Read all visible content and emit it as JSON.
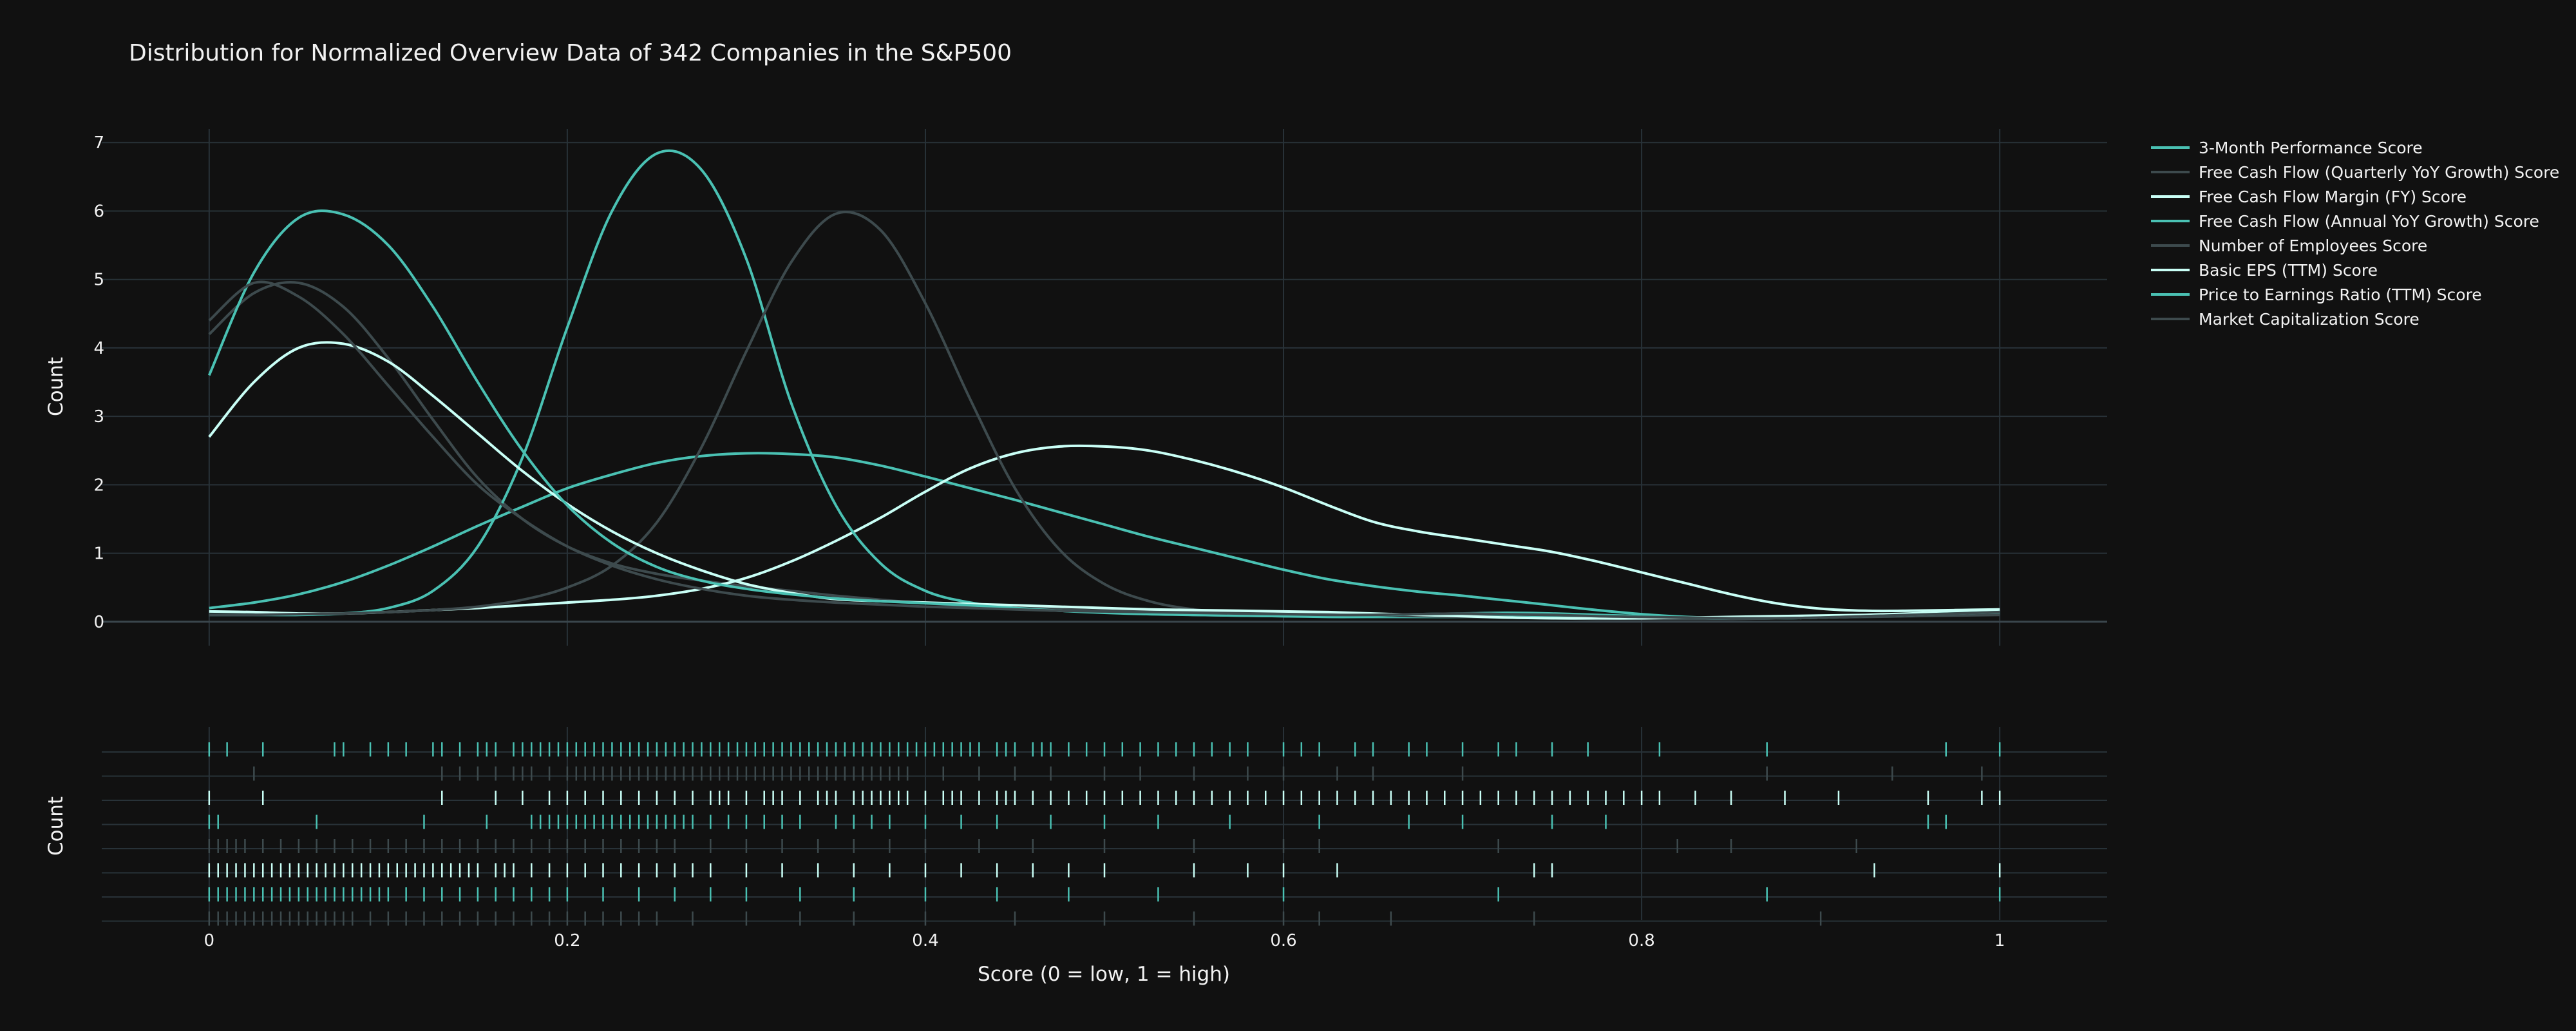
{
  "chart_data": {
    "type": "area",
    "title": "Distribution for Normalized Overview Data of 342 Companies in the S&P500",
    "xlabel": "Score (0 = low, 1 = high)",
    "ylabel": "Count",
    "rug_ylabel": "Count",
    "xlim": [
      -0.06,
      1.06
    ],
    "ylim": [
      -0.35,
      7.2
    ],
    "x_ticks": [
      0,
      0.2,
      0.4,
      0.6,
      0.8,
      1
    ],
    "x_tick_labels": [
      "0",
      "0.2",
      "0.4",
      "0.6",
      "0.8",
      "1"
    ],
    "y_ticks": [
      0,
      1,
      2,
      3,
      4,
      5,
      6,
      7
    ],
    "y_tick_labels": [
      "0",
      "1",
      "2",
      "3",
      "4",
      "5",
      "6",
      "7"
    ],
    "grid": true,
    "legend_position": "right",
    "x": [
      0,
      0.025,
      0.05,
      0.075,
      0.1,
      0.125,
      0.15,
      0.175,
      0.2,
      0.225,
      0.25,
      0.275,
      0.3,
      0.325,
      0.35,
      0.375,
      0.4,
      0.425,
      0.45,
      0.475,
      0.5,
      0.525,
      0.55,
      0.575,
      0.6,
      0.625,
      0.65,
      0.675,
      0.7,
      0.725,
      0.75,
      0.775,
      0.8,
      0.825,
      0.85,
      0.875,
      0.9,
      0.925,
      0.95,
      0.975,
      1
    ],
    "series": [
      {
        "name": "3-Month Performance Score",
        "color": "#4ac1b3",
        "values": [
          0.2,
          0.28,
          0.4,
          0.58,
          0.82,
          1.1,
          1.4,
          1.68,
          1.95,
          2.15,
          2.32,
          2.42,
          2.46,
          2.45,
          2.4,
          2.28,
          2.12,
          1.95,
          1.78,
          1.6,
          1.42,
          1.24,
          1.08,
          0.92,
          0.76,
          0.62,
          0.52,
          0.44,
          0.38,
          0.31,
          0.24,
          0.17,
          0.11,
          0.07,
          0.05,
          0.05,
          0.06,
          0.08,
          0.1,
          0.12,
          0.14
        ],
        "rug": [
          0,
          0.01,
          0.03,
          0.07,
          0.075,
          0.09,
          0.1,
          0.11,
          0.125,
          0.13,
          0.14,
          0.15,
          0.155,
          0.16,
          0.17,
          0.175,
          0.18,
          0.185,
          0.19,
          0.195,
          0.2,
          0.205,
          0.21,
          0.215,
          0.22,
          0.225,
          0.23,
          0.235,
          0.24,
          0.245,
          0.25,
          0.255,
          0.26,
          0.265,
          0.27,
          0.275,
          0.28,
          0.285,
          0.29,
          0.295,
          0.3,
          0.305,
          0.31,
          0.315,
          0.32,
          0.325,
          0.33,
          0.335,
          0.34,
          0.345,
          0.35,
          0.355,
          0.36,
          0.365,
          0.37,
          0.375,
          0.38,
          0.385,
          0.39,
          0.395,
          0.4,
          0.405,
          0.41,
          0.415,
          0.42,
          0.425,
          0.43,
          0.44,
          0.445,
          0.45,
          0.46,
          0.465,
          0.47,
          0.48,
          0.49,
          0.5,
          0.51,
          0.52,
          0.53,
          0.54,
          0.55,
          0.56,
          0.57,
          0.58,
          0.6,
          0.61,
          0.62,
          0.64,
          0.65,
          0.67,
          0.68,
          0.7,
          0.72,
          0.73,
          0.75,
          0.77,
          0.81,
          0.87,
          0.97,
          1.0
        ]
      },
      {
        "name": "Free Cash Flow (Quarterly YoY Growth) Score",
        "color": "#3d4a4d",
        "values": [
          4.2,
          4.8,
          4.95,
          4.6,
          3.85,
          2.95,
          2.1,
          1.5,
          1.1,
          0.85,
          0.7,
          0.6,
          0.52,
          0.45,
          0.38,
          0.32,
          0.27,
          0.23,
          0.2,
          0.18,
          0.16,
          0.15,
          0.14,
          0.13,
          0.12,
          0.11,
          0.1,
          0.1,
          0.1,
          0.1,
          0.09,
          0.08,
          0.07,
          0.06,
          0.05,
          0.05,
          0.06,
          0.08,
          0.1,
          0.12,
          0.14
        ],
        "rug": [
          0.025,
          0.13,
          0.14,
          0.15,
          0.16,
          0.17,
          0.175,
          0.18,
          0.19,
          0.2,
          0.205,
          0.21,
          0.215,
          0.22,
          0.225,
          0.23,
          0.235,
          0.24,
          0.245,
          0.25,
          0.255,
          0.26,
          0.265,
          0.27,
          0.275,
          0.28,
          0.285,
          0.29,
          0.295,
          0.3,
          0.305,
          0.31,
          0.315,
          0.32,
          0.325,
          0.33,
          0.335,
          0.34,
          0.345,
          0.35,
          0.355,
          0.36,
          0.365,
          0.37,
          0.375,
          0.38,
          0.385,
          0.39,
          0.41,
          0.43,
          0.45,
          0.47,
          0.5,
          0.52,
          0.55,
          0.58,
          0.6,
          0.63,
          0.65,
          0.7,
          0.87,
          0.94,
          0.99
        ]
      },
      {
        "name": "Free Cash Flow Margin (FY) Score",
        "color": "#c9fff6",
        "values": [
          0.15,
          0.14,
          0.12,
          0.12,
          0.14,
          0.17,
          0.2,
          0.24,
          0.28,
          0.32,
          0.38,
          0.48,
          0.64,
          0.88,
          1.18,
          1.52,
          1.9,
          2.24,
          2.46,
          2.56,
          2.56,
          2.5,
          2.36,
          2.18,
          1.96,
          1.7,
          1.46,
          1.32,
          1.22,
          1.12,
          1.02,
          0.88,
          0.72,
          0.56,
          0.4,
          0.27,
          0.19,
          0.16,
          0.16,
          0.17,
          0.18
        ],
        "rug": [
          0,
          0.03,
          0.13,
          0.16,
          0.175,
          0.19,
          0.2,
          0.21,
          0.22,
          0.23,
          0.24,
          0.25,
          0.26,
          0.27,
          0.28,
          0.285,
          0.29,
          0.3,
          0.31,
          0.315,
          0.32,
          0.33,
          0.34,
          0.345,
          0.35,
          0.36,
          0.365,
          0.37,
          0.375,
          0.38,
          0.385,
          0.39,
          0.4,
          0.41,
          0.415,
          0.42,
          0.43,
          0.44,
          0.445,
          0.45,
          0.46,
          0.47,
          0.48,
          0.49,
          0.5,
          0.51,
          0.52,
          0.53,
          0.54,
          0.55,
          0.56,
          0.57,
          0.58,
          0.59,
          0.6,
          0.61,
          0.62,
          0.63,
          0.64,
          0.65,
          0.66,
          0.67,
          0.68,
          0.69,
          0.7,
          0.71,
          0.72,
          0.73,
          0.74,
          0.75,
          0.76,
          0.77,
          0.78,
          0.79,
          0.8,
          0.81,
          0.83,
          0.85,
          0.88,
          0.91,
          0.96,
          0.99,
          1.0
        ]
      },
      {
        "name": "Free Cash Flow (Annual YoY Growth) Score",
        "color": "#4ac1b3",
        "values": [
          0.1,
          0.1,
          0.1,
          0.12,
          0.2,
          0.45,
          1.1,
          2.4,
          4.3,
          6.0,
          6.84,
          6.6,
          5.3,
          3.2,
          1.7,
          0.85,
          0.45,
          0.28,
          0.2,
          0.16,
          0.14,
          0.12,
          0.1,
          0.09,
          0.08,
          0.07,
          0.07,
          0.07,
          0.07,
          0.07,
          0.06,
          0.05,
          0.05,
          0.05,
          0.06,
          0.07,
          0.08,
          0.09,
          0.1,
          0.11,
          0.12
        ],
        "rug": [
          0,
          0.005,
          0.06,
          0.12,
          0.155,
          0.18,
          0.185,
          0.19,
          0.195,
          0.2,
          0.205,
          0.21,
          0.215,
          0.22,
          0.225,
          0.23,
          0.235,
          0.24,
          0.245,
          0.25,
          0.255,
          0.26,
          0.265,
          0.27,
          0.28,
          0.29,
          0.3,
          0.31,
          0.32,
          0.33,
          0.35,
          0.36,
          0.37,
          0.38,
          0.4,
          0.42,
          0.44,
          0.47,
          0.5,
          0.53,
          0.57,
          0.62,
          0.67,
          0.7,
          0.75,
          0.78,
          0.96,
          0.97
        ]
      },
      {
        "name": "Number of Employees Score",
        "color": "#3d4a4d",
        "values": [
          0.1,
          0.1,
          0.11,
          0.12,
          0.14,
          0.17,
          0.22,
          0.32,
          0.5,
          0.82,
          1.45,
          2.55,
          3.95,
          5.25,
          5.96,
          5.72,
          4.65,
          3.25,
          1.95,
          1.05,
          0.55,
          0.3,
          0.18,
          0.13,
          0.11,
          0.1,
          0.09,
          0.08,
          0.07,
          0.06,
          0.05,
          0.04,
          0.04,
          0.04,
          0.04,
          0.05,
          0.06,
          0.07,
          0.08,
          0.09,
          0.1
        ],
        "rug": [
          0.0,
          0.005,
          0.01,
          0.015,
          0.02,
          0.03,
          0.04,
          0.05,
          0.06,
          0.07,
          0.08,
          0.09,
          0.1,
          0.11,
          0.12,
          0.13,
          0.14,
          0.15,
          0.16,
          0.17,
          0.18,
          0.19,
          0.2,
          0.21,
          0.22,
          0.23,
          0.24,
          0.25,
          0.26,
          0.28,
          0.3,
          0.32,
          0.34,
          0.36,
          0.38,
          0.4,
          0.43,
          0.46,
          0.5,
          0.55,
          0.6,
          0.62,
          0.72,
          0.82,
          0.85,
          0.92
        ]
      },
      {
        "name": "Basic EPS (TTM) Score",
        "color": "#c9fff6",
        "values": [
          2.7,
          3.5,
          4.0,
          4.06,
          3.8,
          3.3,
          2.75,
          2.2,
          1.72,
          1.32,
          1.0,
          0.75,
          0.55,
          0.42,
          0.33,
          0.3,
          0.28,
          0.26,
          0.24,
          0.22,
          0.2,
          0.18,
          0.17,
          0.16,
          0.15,
          0.14,
          0.12,
          0.1,
          0.08,
          0.06,
          0.05,
          0.05,
          0.05,
          0.06,
          0.07,
          0.08,
          0.09,
          0.1,
          0.12,
          0.14,
          0.16
        ],
        "rug": [
          0.0,
          0.005,
          0.01,
          0.015,
          0.02,
          0.025,
          0.03,
          0.035,
          0.04,
          0.045,
          0.05,
          0.055,
          0.06,
          0.065,
          0.07,
          0.075,
          0.08,
          0.085,
          0.09,
          0.095,
          0.1,
          0.105,
          0.11,
          0.115,
          0.12,
          0.125,
          0.13,
          0.135,
          0.14,
          0.145,
          0.15,
          0.16,
          0.165,
          0.17,
          0.18,
          0.19,
          0.2,
          0.21,
          0.22,
          0.23,
          0.24,
          0.25,
          0.26,
          0.27,
          0.28,
          0.3,
          0.32,
          0.34,
          0.36,
          0.38,
          0.4,
          0.42,
          0.44,
          0.46,
          0.48,
          0.5,
          0.55,
          0.58,
          0.6,
          0.63,
          0.74,
          0.75,
          0.93,
          1.0
        ]
      },
      {
        "name": "Price to Earnings Ratio (TTM) Score",
        "color": "#4ac1b3",
        "values": [
          3.6,
          5.1,
          5.9,
          5.95,
          5.5,
          4.6,
          3.5,
          2.5,
          1.7,
          1.15,
          0.8,
          0.6,
          0.48,
          0.4,
          0.34,
          0.3,
          0.27,
          0.24,
          0.2,
          0.16,
          0.13,
          0.11,
          0.1,
          0.09,
          0.08,
          0.08,
          0.09,
          0.11,
          0.12,
          0.13,
          0.12,
          0.1,
          0.08,
          0.06,
          0.05,
          0.05,
          0.06,
          0.08,
          0.1,
          0.12,
          0.14
        ],
        "rug": [
          0.0,
          0.005,
          0.01,
          0.015,
          0.02,
          0.025,
          0.03,
          0.035,
          0.04,
          0.045,
          0.05,
          0.055,
          0.06,
          0.065,
          0.07,
          0.075,
          0.08,
          0.085,
          0.09,
          0.095,
          0.1,
          0.11,
          0.12,
          0.13,
          0.14,
          0.15,
          0.16,
          0.17,
          0.18,
          0.19,
          0.2,
          0.22,
          0.24,
          0.26,
          0.28,
          0.3,
          0.33,
          0.36,
          0.4,
          0.44,
          0.48,
          0.53,
          0.6,
          0.72,
          0.87,
          1.0
        ]
      },
      {
        "name": "Market Capitalization Score",
        "color": "#3d4a4d",
        "values": [
          4.4,
          4.95,
          4.75,
          4.2,
          3.45,
          2.7,
          2.0,
          1.5,
          1.1,
          0.82,
          0.62,
          0.48,
          0.38,
          0.32,
          0.28,
          0.25,
          0.22,
          0.2,
          0.18,
          0.16,
          0.15,
          0.14,
          0.13,
          0.12,
          0.11,
          0.1,
          0.1,
          0.11,
          0.12,
          0.11,
          0.1,
          0.08,
          0.07,
          0.06,
          0.05,
          0.05,
          0.06,
          0.08,
          0.1,
          0.12,
          0.14
        ],
        "rug": [
          0.0,
          0.005,
          0.01,
          0.015,
          0.02,
          0.025,
          0.03,
          0.035,
          0.04,
          0.045,
          0.05,
          0.055,
          0.06,
          0.065,
          0.07,
          0.075,
          0.08,
          0.09,
          0.1,
          0.11,
          0.12,
          0.13,
          0.14,
          0.15,
          0.16,
          0.17,
          0.18,
          0.19,
          0.2,
          0.21,
          0.22,
          0.23,
          0.24,
          0.25,
          0.27,
          0.3,
          0.33,
          0.36,
          0.4,
          0.45,
          0.5,
          0.55,
          0.6,
          0.62,
          0.66,
          0.74,
          0.9
        ]
      }
    ]
  }
}
